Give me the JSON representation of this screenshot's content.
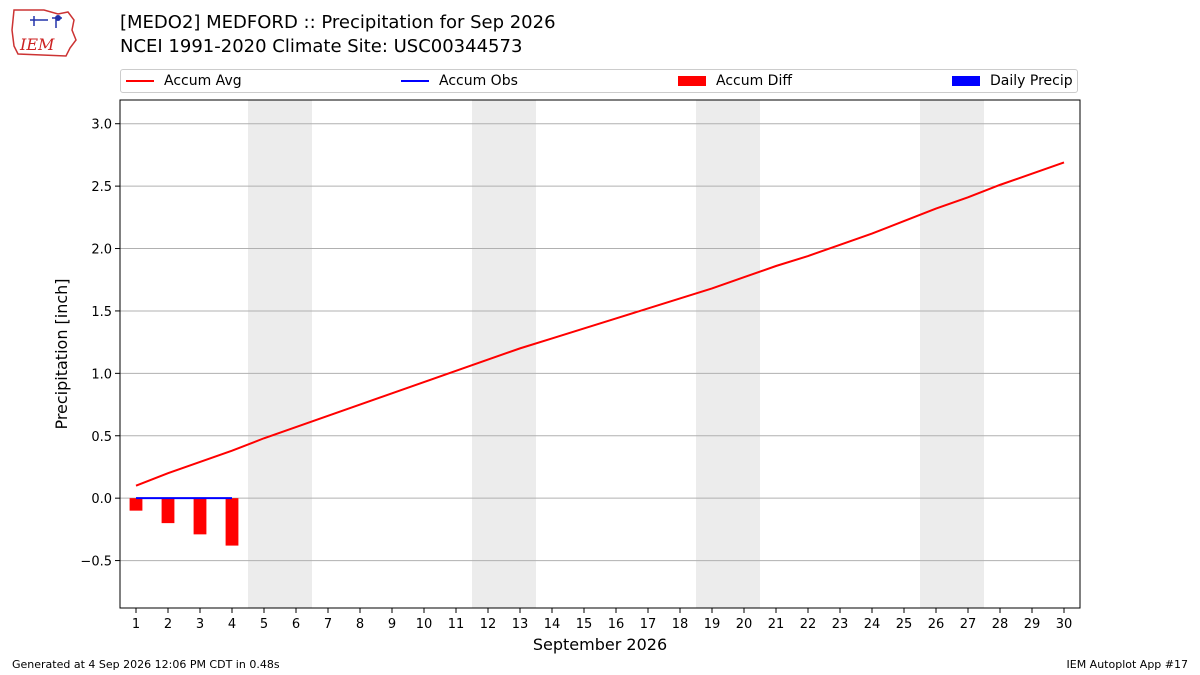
{
  "header": {
    "title": "[MEDO2] MEDFORD :: Precipitation for Sep 2026",
    "subtitle": "NCEI 1991-2020 Climate Site: USC00344573",
    "logo_text": "IEM"
  },
  "legend": [
    {
      "label": "Accum Avg",
      "kind": "line",
      "color": "#ff0000"
    },
    {
      "label": "Accum Obs",
      "kind": "line",
      "color": "#0000ff"
    },
    {
      "label": "Accum Diff",
      "kind": "box",
      "color": "#ff0000"
    },
    {
      "label": "Daily Precip",
      "kind": "box",
      "color": "#0000ff"
    }
  ],
  "footer": {
    "left": "Generated at 4 Sep 2026 12:06 PM CDT in 0.48s",
    "right": "IEM Autoplot App #17"
  },
  "chart_data": {
    "type": "line",
    "title": "[MEDO2] MEDFORD :: Precipitation for Sep 2026",
    "xlabel": "September 2026",
    "ylabel": "Precipitation [inch]",
    "x": [
      1,
      2,
      3,
      4,
      5,
      6,
      7,
      8,
      9,
      10,
      11,
      12,
      13,
      14,
      15,
      16,
      17,
      18,
      19,
      20,
      21,
      22,
      23,
      24,
      25,
      26,
      27,
      28,
      29,
      30
    ],
    "xlim": [
      0.5,
      30.5
    ],
    "ylim": [
      -0.88,
      3.19
    ],
    "yticks": [
      -0.5,
      0.0,
      0.5,
      1.0,
      1.5,
      2.0,
      2.5,
      3.0
    ],
    "ytick_labels": [
      "−0.5",
      "0.0",
      "0.5",
      "1.0",
      "1.5",
      "2.0",
      "2.5",
      "3.0"
    ],
    "grid": "horizontal",
    "weekend_shading": [
      [
        4.5,
        6.5
      ],
      [
        11.5,
        13.5
      ],
      [
        18.5,
        20.5
      ],
      [
        25.5,
        27.5
      ]
    ],
    "series": [
      {
        "name": "Accum Avg",
        "kind": "line",
        "color": "#ff0000",
        "x": [
          1,
          2,
          3,
          4,
          5,
          6,
          7,
          8,
          9,
          10,
          11,
          12,
          13,
          14,
          15,
          16,
          17,
          18,
          19,
          20,
          21,
          22,
          23,
          24,
          25,
          26,
          27,
          28,
          29,
          30
        ],
        "values": [
          0.1,
          0.2,
          0.29,
          0.38,
          0.48,
          0.57,
          0.66,
          0.75,
          0.84,
          0.93,
          1.02,
          1.11,
          1.2,
          1.28,
          1.36,
          1.44,
          1.52,
          1.6,
          1.68,
          1.77,
          1.86,
          1.94,
          2.03,
          2.12,
          2.22,
          2.32,
          2.41,
          2.51,
          2.6,
          2.69
        ]
      },
      {
        "name": "Accum Obs",
        "kind": "line",
        "color": "#0000ff",
        "x": [
          1,
          2,
          3,
          4
        ],
        "values": [
          0.0,
          0.0,
          0.0,
          0.0
        ]
      },
      {
        "name": "Accum Diff",
        "kind": "bar",
        "color": "#ff0000",
        "x": [
          1,
          2,
          3,
          4
        ],
        "values": [
          -0.1,
          -0.2,
          -0.29,
          -0.38
        ]
      },
      {
        "name": "Daily Precip",
        "kind": "bar",
        "color": "#0000ff",
        "x": [
          1,
          2,
          3,
          4
        ],
        "values": [
          0.0,
          0.0,
          0.0,
          0.0
        ]
      }
    ]
  }
}
